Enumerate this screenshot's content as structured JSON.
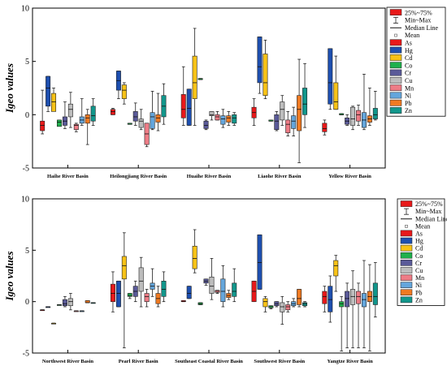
{
  "chart_data": [
    {
      "type": "box",
      "ylabel": "Igeo values",
      "ylim": [
        -5,
        10
      ],
      "yticks": [
        -5,
        0,
        5,
        10
      ],
      "categories": [
        "Haihe River Basin",
        "Heilongjiang River Basin",
        "Huaihe River Basin",
        "Liaohe River Basin",
        "Yellow River Basin"
      ],
      "legend": {
        "placement": "right",
        "entries": [
          "25%~75%",
          "Min~Max",
          "Median Line",
          "Mean"
        ],
        "elements": [
          "As",
          "Hg",
          "Cd",
          "Co",
          "Cr",
          "Cu",
          "Mn",
          "Ni",
          "Pb",
          "Zn"
        ]
      },
      "series": [
        {
          "name": "As",
          "boxes": [
            [
              -1.8,
              -1.5,
              -1.0,
              -0.6,
              2.3
            ],
            [
              0.0,
              0.0,
              0.3,
              0.5,
              0.6
            ],
            [
              -1.0,
              -0.3,
              0.5,
              1.9,
              4.5
            ],
            [
              -1.0,
              -0.3,
              0.2,
              0.7,
              1.5
            ],
            [
              -1.9,
              -1.6,
              -1.3,
              -0.8,
              -0.5
            ]
          ]
        },
        {
          "name": "Hg",
          "boxes": [
            [
              0.3,
              0.8,
              2.5,
              3.6,
              3.6
            ],
            [
              1.5,
              2.3,
              3.2,
              4.1,
              4.1
            ],
            [
              -1.0,
              -1.0,
              0.6,
              2.4,
              2.4
            ],
            [
              2.0,
              3.0,
              4.5,
              7.3,
              7.3
            ],
            [
              0.5,
              1.0,
              3.0,
              6.2,
              6.2
            ]
          ]
        },
        {
          "name": "Cd",
          "boxes": [
            [
              0.5,
              0.3,
              1.2,
              2.0,
              2.5
            ],
            [
              1.0,
              1.5,
              2.3,
              2.8,
              3.0
            ],
            [
              -1.0,
              1.5,
              3.0,
              5.5,
              8.1
            ],
            [
              1.5,
              1.8,
              3.0,
              5.7,
              7.0
            ],
            [
              0.5,
              0.5,
              1.2,
              3.0,
              5.5
            ]
          ]
        },
        {
          "name": "Co",
          "boxes": [
            [
              -1.0,
              -1.1,
              -0.7,
              -0.5,
              -0.5
            ],
            [
              -0.9,
              -0.9,
              -0.9,
              -0.8,
              -0.8
            ],
            [
              3.3,
              3.3,
              3.3,
              3.4,
              3.4
            ],
            [
              -0.6,
              -0.6,
              -0.6,
              -0.5,
              -0.5
            ],
            [
              0.0,
              0.0,
              0.0,
              0.1,
              0.1
            ]
          ]
        },
        {
          "name": "Cr",
          "boxes": [
            [
              -1.3,
              -1.0,
              -0.6,
              -0.2,
              1.2
            ],
            [
              -1.0,
              -0.6,
              -0.2,
              0.3,
              1.1
            ],
            [
              -1.4,
              -1.3,
              -1.0,
              -0.6,
              -0.5
            ],
            [
              -1.5,
              -1.4,
              -0.6,
              0.0,
              0.3
            ],
            [
              -1.0,
              -0.9,
              -0.6,
              -0.3,
              0.0
            ]
          ]
        },
        {
          "name": "Cu",
          "boxes": [
            [
              -1.2,
              -0.2,
              0.5,
              1.0,
              2.1
            ],
            [
              -1.4,
              -1.2,
              -0.6,
              -0.4,
              0.5
            ],
            [
              -0.5,
              -0.1,
              0.0,
              0.3,
              0.3
            ],
            [
              -1.0,
              -0.5,
              0.5,
              1.2,
              1.8
            ],
            [
              -1.4,
              -1.0,
              -0.4,
              0.7,
              0.8
            ]
          ]
        },
        {
          "name": "Mn",
          "boxes": [
            [
              -1.6,
              -1.4,
              -1.0,
              -0.9,
              -0.8
            ],
            [
              -3.0,
              -2.8,
              -1.8,
              -0.8,
              -0.8
            ],
            [
              -0.5,
              -0.5,
              -0.2,
              0.0,
              0.3
            ],
            [
              -2.0,
              -1.7,
              -0.9,
              -0.5,
              0.3
            ],
            [
              -1.0,
              -0.6,
              0.0,
              0.4,
              0.9
            ]
          ]
        },
        {
          "name": "Ni",
          "boxes": [
            [
              -1.0,
              -0.8,
              -0.5,
              -0.2,
              1.5
            ],
            [
              -1.4,
              -1.3,
              -0.2,
              0.2,
              2.2
            ],
            [
              -1.2,
              -0.9,
              -0.4,
              -0.1,
              0.5
            ],
            [
              -2.0,
              -1.3,
              -0.6,
              -0.1,
              0.7
            ],
            [
              -1.4,
              -1.2,
              -0.5,
              0.2,
              3.8
            ]
          ]
        },
        {
          "name": "Pb",
          "boxes": [
            [
              -2.8,
              -0.8,
              -0.3,
              0.0,
              0.5
            ],
            [
              -1.5,
              -0.7,
              -0.3,
              0.0,
              2.0
            ],
            [
              -1.0,
              -0.7,
              -0.3,
              -0.1,
              0.3
            ],
            [
              -4.5,
              -1.5,
              0.5,
              1.8,
              5.2
            ],
            [
              -1.0,
              -0.7,
              -0.4,
              -0.1,
              2.5
            ]
          ]
        },
        {
          "name": "Zn",
          "boxes": [
            [
              -1.0,
              -0.6,
              -0.1,
              0.8,
              1.5
            ],
            [
              -0.9,
              -0.2,
              0.8,
              1.8,
              2.9
            ],
            [
              -1.0,
              -0.8,
              -0.3,
              0.0,
              0.2
            ],
            [
              -1.2,
              0.0,
              1.0,
              2.5,
              4.8
            ],
            [
              -0.5,
              -0.4,
              0.0,
              0.6,
              2.2
            ]
          ]
        }
      ]
    },
    {
      "type": "box",
      "ylabel": "Igeo values",
      "ylim": [
        -5,
        10
      ],
      "yticks": [
        -5,
        0,
        5,
        10
      ],
      "categories": [
        "Northwest River Basin",
        "Pearl River Basin",
        "Southeast Coastal River Basin",
        "Southwest River Basin",
        "Yangtze River Basin"
      ],
      "legend": {
        "placement": "right",
        "entries": [
          "25%~75%",
          "Min~Max",
          "Median Line",
          "Mean"
        ],
        "elements": [
          "As",
          "Hg",
          "Cd",
          "Co",
          "Cr",
          "Cu",
          "Mn",
          "Ni",
          "Pb",
          "Zn"
        ]
      },
      "series": [
        {
          "name": "As",
          "boxes": [
            [
              -0.8,
              -0.8,
              -0.8,
              -0.8,
              -0.8
            ],
            [
              -1.0,
              0.0,
              0.8,
              1.7,
              2.9
            ],
            [
              0.0,
              0.0,
              0.0,
              0.1,
              0.1
            ],
            [
              0.0,
              0.0,
              1.0,
              2.0,
              2.0
            ],
            [
              -1.0,
              -0.2,
              0.5,
              1.0,
              1.5
            ]
          ]
        },
        {
          "name": "Hg",
          "boxes": [
            [
              -0.5,
              -0.5,
              -0.5,
              -0.5,
              -0.5
            ],
            [
              -0.5,
              -0.5,
              0.8,
              2.0,
              2.0
            ],
            [
              0.3,
              0.3,
              0.8,
              1.5,
              1.5
            ],
            [
              1.2,
              1.2,
              3.8,
              6.5,
              6.5
            ],
            [
              -2.0,
              -1.0,
              0.2,
              1.5,
              2.5
            ]
          ]
        },
        {
          "name": "Cd",
          "boxes": [
            [
              -2.1,
              -2.1,
              -2.1,
              -2.1,
              -2.1
            ],
            [
              -4.5,
              2.2,
              3.5,
              4.4,
              6.7
            ],
            [
              2.8,
              3.2,
              4.2,
              5.4,
              7.0
            ],
            [
              -1.0,
              -0.5,
              0.0,
              0.3,
              0.5
            ],
            [
              1.0,
              2.5,
              3.5,
              4.0,
              4.5
            ]
          ]
        },
        {
          "name": "Co",
          "boxes": [
            [
              -0.3,
              -0.3,
              -0.3,
              -0.3,
              -0.3
            ],
            [
              0.3,
              0.5,
              0.6,
              0.8,
              0.8
            ],
            [
              -0.3,
              -0.3,
              -0.2,
              -0.1,
              -0.1
            ],
            [
              -0.7,
              -0.6,
              -0.5,
              -0.4,
              -0.4
            ],
            [
              -4.8,
              -0.5,
              -0.2,
              0.0,
              0.5
            ]
          ]
        },
        {
          "name": "Cr",
          "boxes": [
            [
              -0.5,
              -0.4,
              -0.2,
              0.2,
              0.5
            ],
            [
              0.0,
              0.5,
              1.0,
              1.5,
              2.0
            ],
            [
              1.6,
              1.8,
              2.0,
              2.2,
              2.2
            ],
            [
              -0.5,
              -0.4,
              -0.2,
              0.0,
              0.0
            ],
            [
              -4.5,
              -0.5,
              0.3,
              1.0,
              1.8
            ]
          ]
        },
        {
          "name": "Cu",
          "boxes": [
            [
              -0.8,
              -0.4,
              0.0,
              0.3,
              0.8
            ],
            [
              -0.5,
              1.0,
              2.0,
              3.3,
              4.3
            ],
            [
              0.2,
              0.8,
              1.5,
              2.4,
              4.2
            ],
            [
              -2.2,
              -1.0,
              -0.5,
              -0.1,
              0.5
            ],
            [
              -4.5,
              -0.3,
              0.5,
              1.2,
              3.0
            ]
          ]
        },
        {
          "name": "Mn",
          "boxes": [
            [
              -0.9,
              -0.9,
              -0.9,
              -0.9,
              -0.9
            ],
            [
              -0.5,
              0.0,
              0.5,
              0.8,
              1.2
            ],
            [
              0.8,
              0.9,
              1.0,
              1.1,
              1.1
            ],
            [
              -1.0,
              -0.8,
              -0.5,
              -0.3,
              0.0
            ],
            [
              -4.5,
              -0.2,
              0.5,
              1.0,
              1.8
            ]
          ]
        },
        {
          "name": "Ni",
          "boxes": [
            [
              -0.9,
              -0.9,
              -0.9,
              -0.9,
              -0.9
            ],
            [
              0.5,
              1.2,
              1.5,
              1.8,
              3.2
            ],
            [
              -0.5,
              0.0,
              1.0,
              2.2,
              3.5
            ],
            [
              -0.5,
              -0.4,
              -0.2,
              0.0,
              0.3
            ],
            [
              -4.5,
              -0.5,
              0.2,
              0.8,
              4.0
            ]
          ]
        },
        {
          "name": "Pb",
          "boxes": [
            [
              -0.1,
              -0.1,
              -0.1,
              0.1,
              0.1
            ],
            [
              -0.5,
              -0.2,
              0.3,
              0.8,
              1.5
            ],
            [
              0.2,
              0.4,
              0.6,
              0.8,
              1.1
            ],
            [
              -0.5,
              -0.3,
              0.3,
              1.2,
              1.2
            ],
            [
              -4.8,
              0.0,
              0.5,
              1.0,
              3.6
            ]
          ]
        },
        {
          "name": "Zn",
          "boxes": [
            [
              -0.1,
              -0.1,
              -0.1,
              -0.1,
              -0.1
            ],
            [
              0.0,
              0.5,
              1.2,
              2.0,
              2.9
            ],
            [
              0.0,
              0.5,
              1.0,
              1.8,
              3.2
            ],
            [
              -0.5,
              -0.4,
              -0.2,
              -0.1,
              0.0
            ],
            [
              -1.5,
              -0.3,
              0.5,
              1.8,
              3.8
            ]
          ]
        }
      ]
    }
  ],
  "colors": {
    "As": "#e8191a",
    "Hg": "#1d4fb0",
    "Cd": "#f7c217",
    "Co": "#1fb04c",
    "Cr": "#5a5a99",
    "Cu": "#bdbdbd",
    "Mn": "#ee7c86",
    "Ni": "#64a6dc",
    "Pb": "#f07a22",
    "Zn": "#12978c"
  }
}
